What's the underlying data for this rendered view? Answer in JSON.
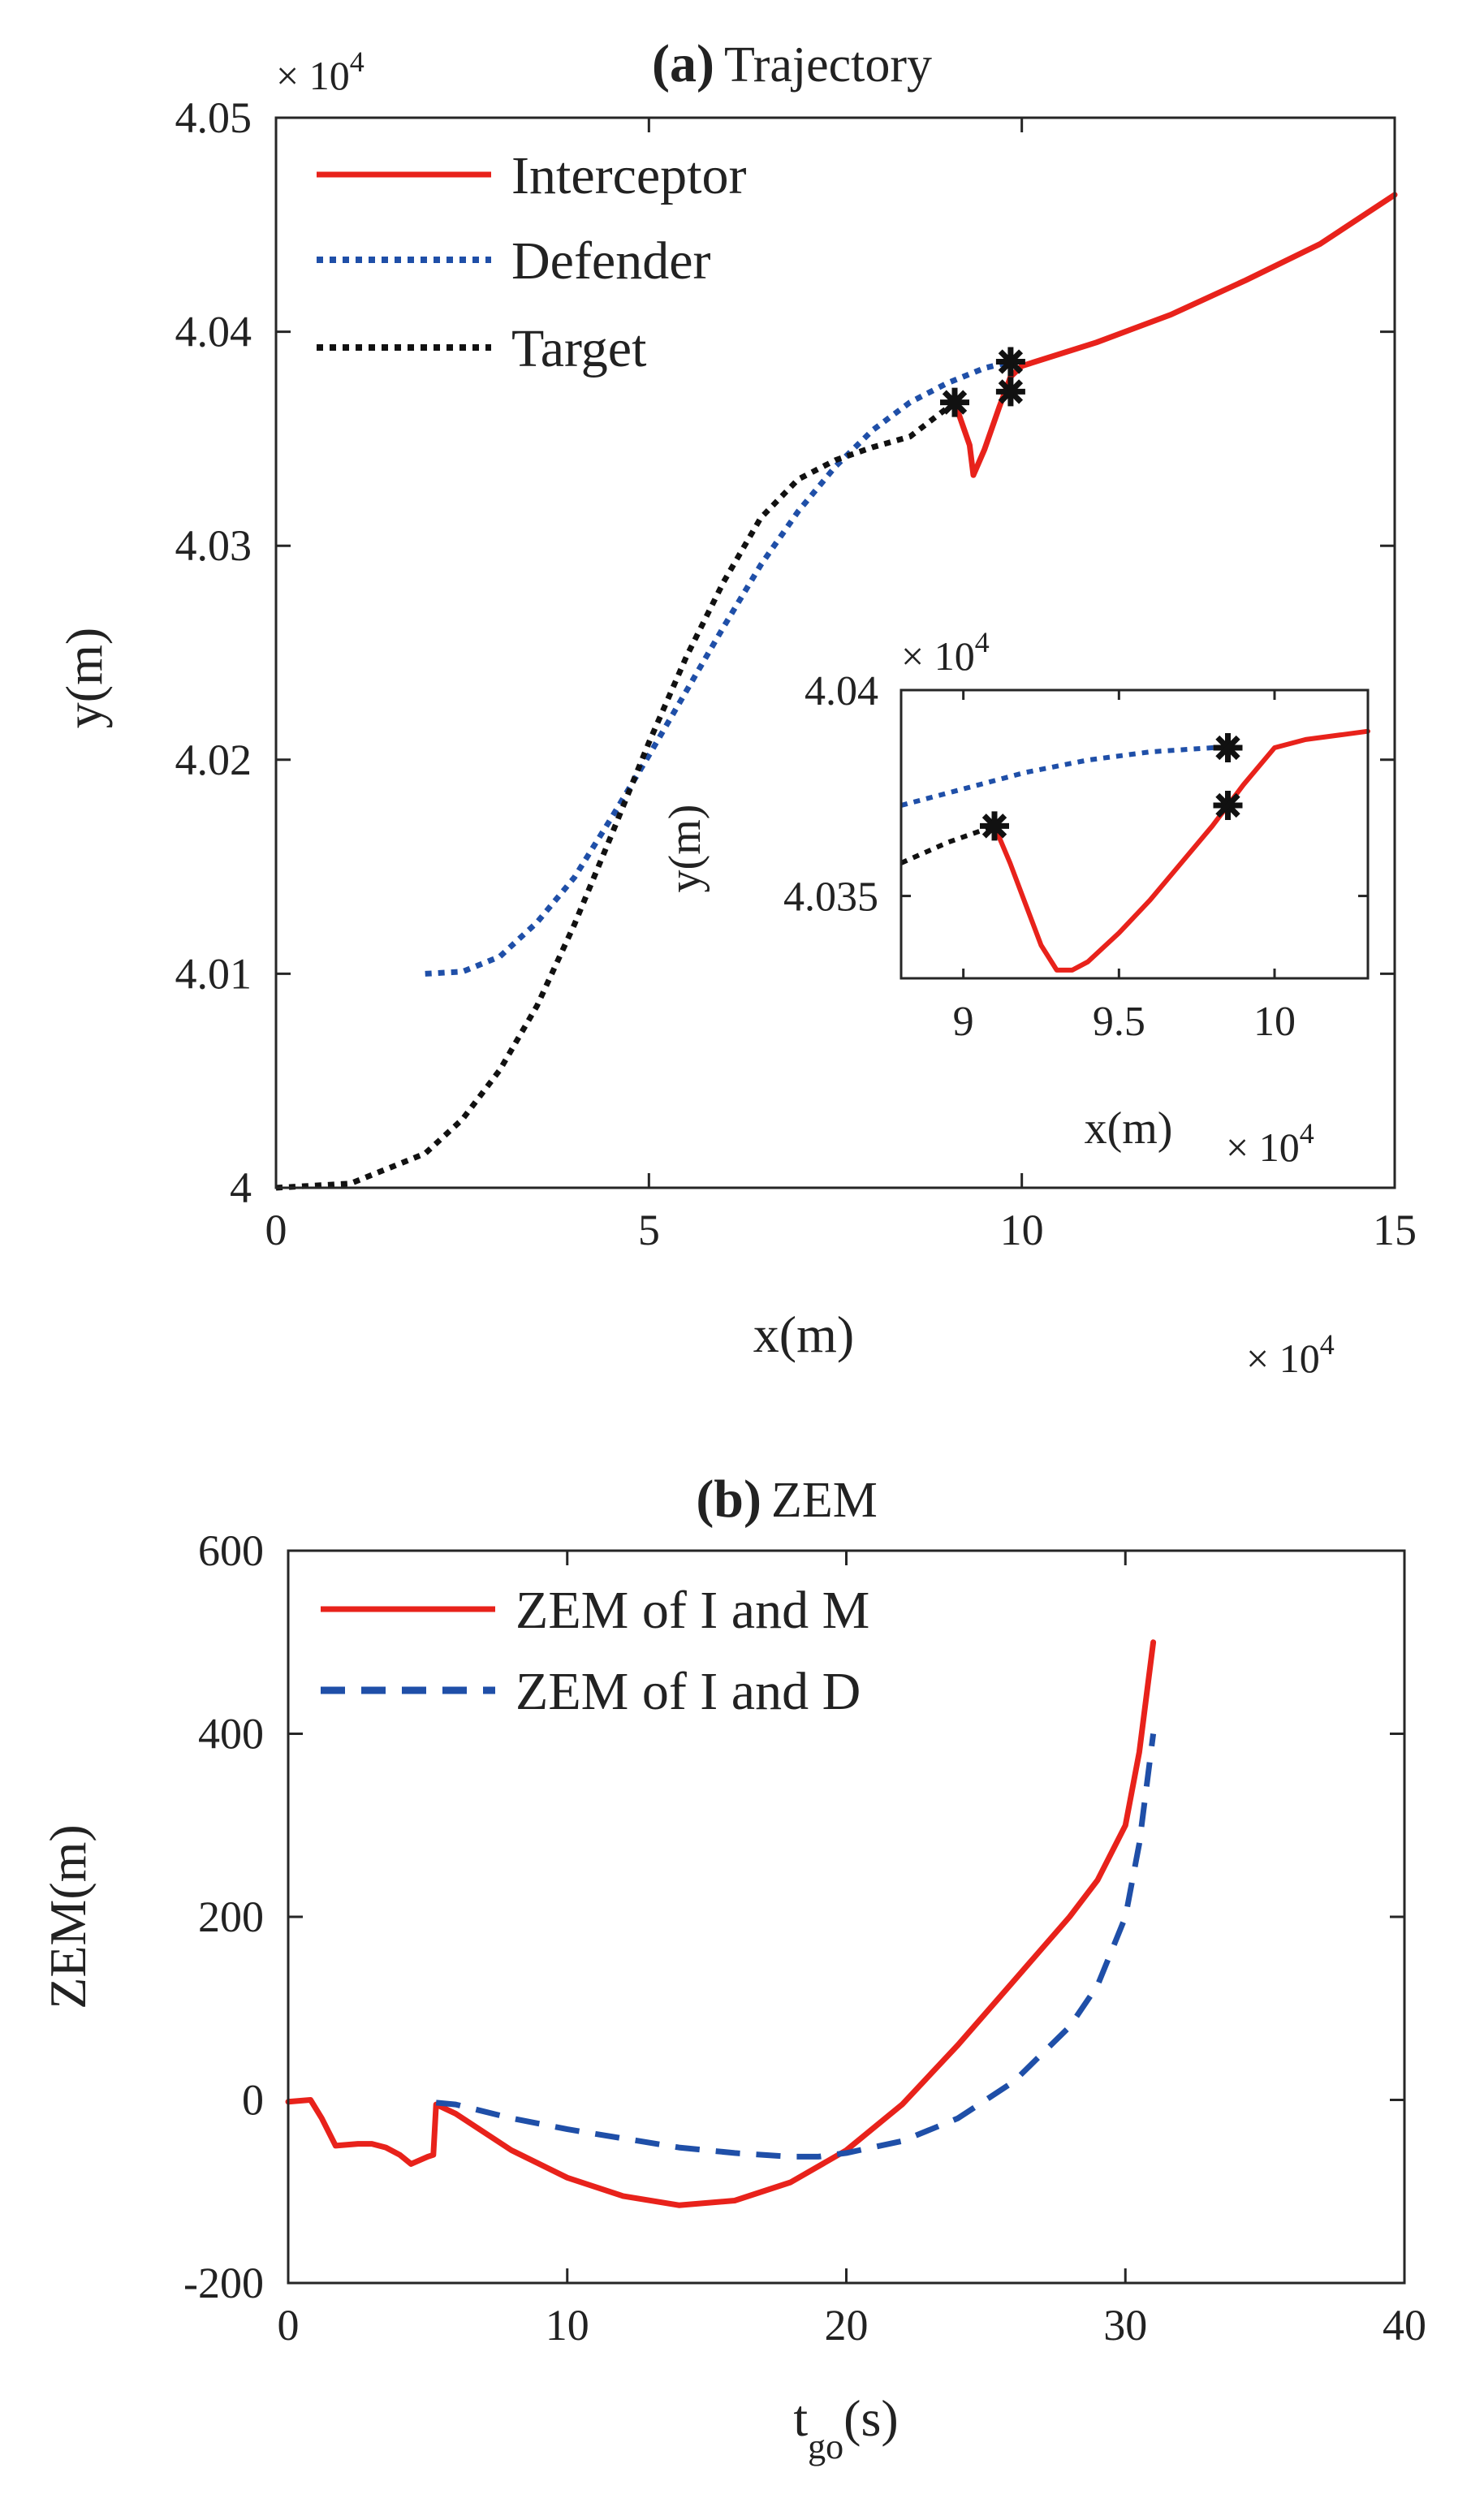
{
  "chart_data": [
    {
      "id": "a",
      "type": "line",
      "title_bold": "(a)",
      "title": "Trajectory",
      "xlabel": "x(m)",
      "ylabel": "y(m)",
      "x_exponent_text": "× 10",
      "x_exponent_power": "4",
      "y_exponent_text": "× 10",
      "y_exponent_power": "4",
      "xlim": [
        0,
        15
      ],
      "ylim": [
        4.0,
        4.05
      ],
      "xticks": [
        0,
        5,
        10,
        15
      ],
      "xtick_labels": [
        "0",
        "5",
        "10",
        "15"
      ],
      "yticks": [
        4.0,
        4.01,
        4.02,
        4.03,
        4.04,
        4.05
      ],
      "ytick_labels": [
        "4",
        "4.01",
        "4.02",
        "4.03",
        "4.04",
        "4.05"
      ],
      "legend_position": "top-left",
      "series": [
        {
          "name": "Interceptor",
          "color": "#e8221b",
          "style": "solid",
          "x": [
            9.1,
            9.3,
            9.35,
            9.5,
            9.7,
            9.85,
            10.0,
            11.0,
            12.0,
            13.0,
            14.0,
            15.0
          ],
          "y": [
            4.0367,
            4.0347,
            4.0333,
            4.0345,
            4.0365,
            4.0379,
            4.0384,
            4.0395,
            4.0408,
            4.0424,
            4.0441,
            4.0464
          ]
        },
        {
          "name": "Defender",
          "color": "#1f4fa8",
          "style": "dotted",
          "x": [
            2.0,
            2.5,
            3.0,
            3.5,
            4.0,
            4.5,
            5.0,
            5.5,
            6.0,
            6.5,
            7.0,
            7.5,
            8.0,
            8.5,
            9.0,
            9.5,
            9.85
          ],
          "y": [
            4.01,
            4.0101,
            4.0108,
            4.0124,
            4.0145,
            4.0173,
            4.0202,
            4.0232,
            4.0262,
            4.0291,
            4.0316,
            4.0337,
            4.0354,
            4.0367,
            4.0376,
            4.0383,
            4.0386
          ]
        },
        {
          "name": "Target",
          "color": "#111111",
          "style": "dotted",
          "x": [
            0.0,
            1.0,
            2.0,
            2.5,
            3.0,
            3.5,
            4.0,
            4.5,
            5.0,
            5.5,
            6.0,
            6.5,
            7.0,
            7.5,
            8.0,
            8.5,
            9.1
          ],
          "y": [
            4.0,
            4.0002,
            4.0016,
            4.0032,
            4.0055,
            4.0085,
            4.0123,
            4.0165,
            4.0208,
            4.0248,
            4.0283,
            4.0313,
            4.0331,
            4.034,
            4.0346,
            4.0351,
            4.0367
          ]
        }
      ],
      "markers": [
        {
          "x": 9.1,
          "y": 4.0367
        },
        {
          "x": 9.85,
          "y": 4.0386
        },
        {
          "x": 9.85,
          "y": 4.0372
        }
      ],
      "inset": {
        "xlabel": "x(m)",
        "ylabel": "y(m)",
        "x_exponent_text": "× 10",
        "x_exponent_power": "4",
        "y_exponent_text": "× 10",
        "y_exponent_power": "4",
        "xlim": [
          8.8,
          10.3
        ],
        "ylim": [
          4.033,
          4.04
        ],
        "xticks": [
          9.0,
          9.5,
          10.0
        ],
        "xtick_labels": [
          "9",
          "9.5",
          "10"
        ],
        "yticks": [
          4.035,
          4.04
        ],
        "ytick_labels": [
          "4.035",
          "4.04"
        ],
        "series": [
          {
            "name": "Interceptor",
            "color": "#e8221b",
            "style": "solid",
            "x": [
              9.1,
              9.15,
              9.2,
              9.25,
              9.3,
              9.35,
              9.4,
              9.5,
              9.6,
              9.7,
              9.8,
              9.9,
              10.0,
              10.1,
              10.3
            ],
            "y": [
              4.0367,
              4.0358,
              4.0348,
              4.0338,
              4.0332,
              4.0332,
              4.0334,
              4.0341,
              4.0349,
              4.0358,
              4.0367,
              4.0377,
              4.0386,
              4.0388,
              4.039
            ]
          },
          {
            "name": "Defender",
            "color": "#1f4fa8",
            "style": "dotted",
            "x": [
              8.8,
              9.0,
              9.2,
              9.4,
              9.6,
              9.8,
              9.85
            ],
            "y": [
              4.0372,
              4.0376,
              4.038,
              4.0383,
              4.0385,
              4.0386,
              4.0386
            ]
          },
          {
            "name": "Target",
            "color": "#111111",
            "style": "dotted",
            "x": [
              8.8,
              8.95,
              9.1
            ],
            "y": [
              4.0358,
              4.0363,
              4.0367
            ]
          }
        ],
        "markers": [
          {
            "x": 9.1,
            "y": 4.0367
          },
          {
            "x": 9.85,
            "y": 4.0386
          },
          {
            "x": 9.85,
            "y": 4.0372
          }
        ]
      }
    },
    {
      "id": "b",
      "type": "line",
      "title_bold": "(b)",
      "title": "ZEM",
      "xlabel_main": "t",
      "xlabel_sub": "go",
      "xlabel_unit": "(s)",
      "ylabel": "ZEM(m)",
      "xlim": [
        0,
        40
      ],
      "ylim": [
        -200,
        600
      ],
      "xticks": [
        0,
        10,
        20,
        30,
        40
      ],
      "xtick_labels": [
        "0",
        "10",
        "20",
        "30",
        "40"
      ],
      "yticks": [
        -200,
        0,
        200,
        400,
        600
      ],
      "ytick_labels": [
        "-200",
        "0",
        "200",
        "400",
        "600"
      ],
      "legend_position": "top-left",
      "series": [
        {
          "name": "ZEM of I and M",
          "color": "#e8221b",
          "style": "solid",
          "x": [
            0,
            0.8,
            1.2,
            1.7,
            2.5,
            3.0,
            3.5,
            4.0,
            4.4,
            5.0,
            5.2,
            5.3,
            6.0,
            8.0,
            10.0,
            12.0,
            14.0,
            16.0,
            18.0,
            20.0,
            22.0,
            24.0,
            26.0,
            27.0,
            28.0,
            29.0,
            30.0,
            30.5,
            31.0
          ],
          "y": [
            -2,
            0,
            -20,
            -50,
            -48,
            -48,
            -52,
            -60,
            -70,
            -62,
            -60,
            -5,
            -15,
            -55,
            -85,
            -105,
            -115,
            -110,
            -90,
            -55,
            -5,
            60,
            130,
            165,
            200,
            240,
            300,
            380,
            500
          ]
        },
        {
          "name": "ZEM of I and D",
          "color": "#1f4fa8",
          "style": "dashed",
          "x": [
            5.3,
            6.0,
            8.0,
            10.0,
            12.0,
            14.0,
            16.0,
            18.0,
            19.0,
            20.0,
            22.0,
            24.0,
            26.0,
            28.0,
            29.0,
            30.0,
            30.5,
            31.0
          ],
          "y": [
            -3,
            -5,
            -20,
            -32,
            -42,
            -52,
            -58,
            -62,
            -62,
            -58,
            -45,
            -20,
            20,
            80,
            125,
            200,
            280,
            400
          ]
        }
      ]
    }
  ]
}
